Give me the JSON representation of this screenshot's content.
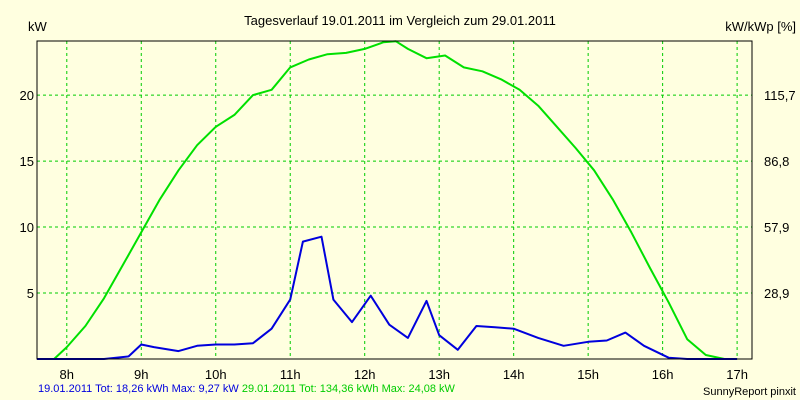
{
  "chart_data": {
    "type": "line",
    "title": "Tagesverlauf 19.01.2011 im Vergleich zum 29.01.2011",
    "ylabel_left": "kW",
    "ylabel_right": "kW/kWp [%]",
    "x_ticks": [
      "8h",
      "9h",
      "10h",
      "11h",
      "12h",
      "13h",
      "14h",
      "15h",
      "16h",
      "17h"
    ],
    "y_ticks_left": [
      "5",
      "10",
      "15",
      "20"
    ],
    "y_ticks_right": [
      "28,9",
      "57,9",
      "86,8",
      "115,7"
    ],
    "xlim": [
      7.6,
      17.2
    ],
    "ylim": [
      0,
      24.1
    ],
    "grid": true,
    "colors": {
      "background": "#ffffe0",
      "grid": "#00cc00",
      "series1": "#0000dd",
      "series2": "#00e000"
    },
    "series": [
      {
        "name": "19.01.2011",
        "color": "#0000dd",
        "x": [
          7.6,
          8.0,
          8.5,
          8.83,
          9.0,
          9.17,
          9.5,
          9.75,
          10.0,
          10.25,
          10.5,
          10.75,
          11.0,
          11.17,
          11.42,
          11.58,
          11.83,
          12.08,
          12.33,
          12.58,
          12.83,
          13.0,
          13.25,
          13.5,
          13.75,
          14.0,
          14.33,
          14.67,
          15.0,
          15.25,
          15.5,
          15.75,
          16.08,
          16.33,
          16.67,
          17.0
        ],
        "y": [
          0.0,
          0.0,
          0.0,
          0.2,
          1.1,
          0.9,
          0.6,
          1.0,
          1.1,
          1.1,
          1.2,
          2.3,
          4.5,
          8.9,
          9.27,
          4.5,
          2.8,
          4.8,
          2.6,
          1.6,
          4.4,
          1.8,
          0.7,
          2.5,
          2.4,
          2.3,
          1.6,
          1.0,
          1.3,
          1.4,
          2.0,
          1.0,
          0.1,
          0.0,
          0.0,
          0.0
        ]
      },
      {
        "name": "29.01.2011",
        "color": "#00e000",
        "x": [
          7.6,
          7.83,
          8.0,
          8.25,
          8.5,
          8.75,
          9.0,
          9.25,
          9.5,
          9.75,
          10.0,
          10.25,
          10.5,
          10.75,
          11.0,
          11.25,
          11.5,
          11.75,
          12.0,
          12.25,
          12.42,
          12.58,
          12.83,
          13.08,
          13.33,
          13.58,
          13.83,
          14.08,
          14.33,
          14.58,
          14.83,
          15.08,
          15.33,
          15.58,
          15.83,
          16.08,
          16.33,
          16.58,
          16.83,
          17.0
        ],
        "y": [
          0.0,
          0.0,
          0.9,
          2.5,
          4.6,
          7.1,
          9.6,
          12.1,
          14.3,
          16.2,
          17.6,
          18.5,
          20.0,
          20.4,
          22.1,
          22.7,
          23.1,
          23.2,
          23.5,
          24.0,
          24.08,
          23.5,
          22.8,
          23.0,
          22.1,
          21.8,
          21.2,
          20.4,
          19.2,
          17.6,
          16.0,
          14.3,
          12.1,
          9.6,
          6.9,
          4.3,
          1.5,
          0.3,
          0.0,
          0.0
        ]
      }
    ]
  },
  "footer": {
    "s1_date": "19.01.2011",
    "s1_tot_label": "Tot:",
    "s1_tot": "18,26 kWh",
    "s1_max_label": "Max:",
    "s1_max": "9,27 kW",
    "s2_date": "29.01.2011",
    "s2_tot_label": "Tot:",
    "s2_tot": "134,36 kWh",
    "s2_max_label": "Max:",
    "s2_max": "24,08 kW",
    "credit": "SunnyReport pinxit"
  }
}
